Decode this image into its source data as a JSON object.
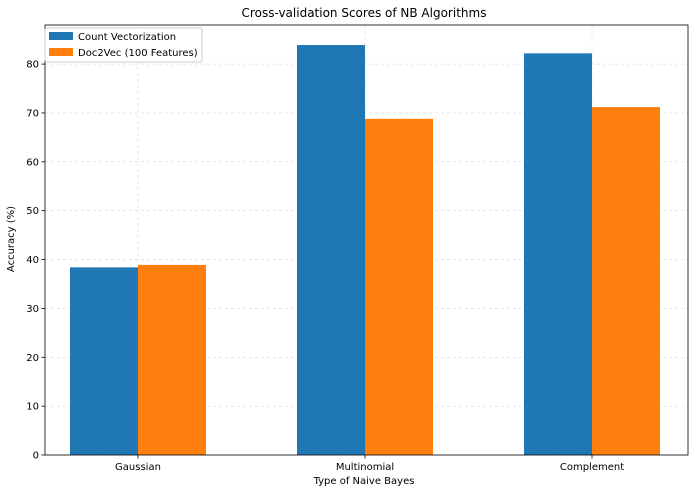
{
  "chart_data": {
    "type": "bar",
    "title": "Cross-validation Scores of NB Algorithms",
    "xlabel": "Type of Naive Bayes",
    "ylabel": "Accuracy (%)",
    "categories": [
      "Gaussian",
      "Multinomial",
      "Complement"
    ],
    "series": [
      {
        "name": "Count Vectorization",
        "values": [
          38.4,
          83.9,
          82.2
        ],
        "color": "#1f77b4"
      },
      {
        "name": "Doc2Vec (100 Features)",
        "values": [
          38.9,
          68.8,
          71.2
        ],
        "color": "#ff7f0e"
      }
    ],
    "ylim": [
      0,
      88
    ],
    "yticks": [
      0,
      10,
      20,
      30,
      40,
      50,
      60,
      70,
      80
    ],
    "grid": true,
    "legend_position": "top-left"
  }
}
